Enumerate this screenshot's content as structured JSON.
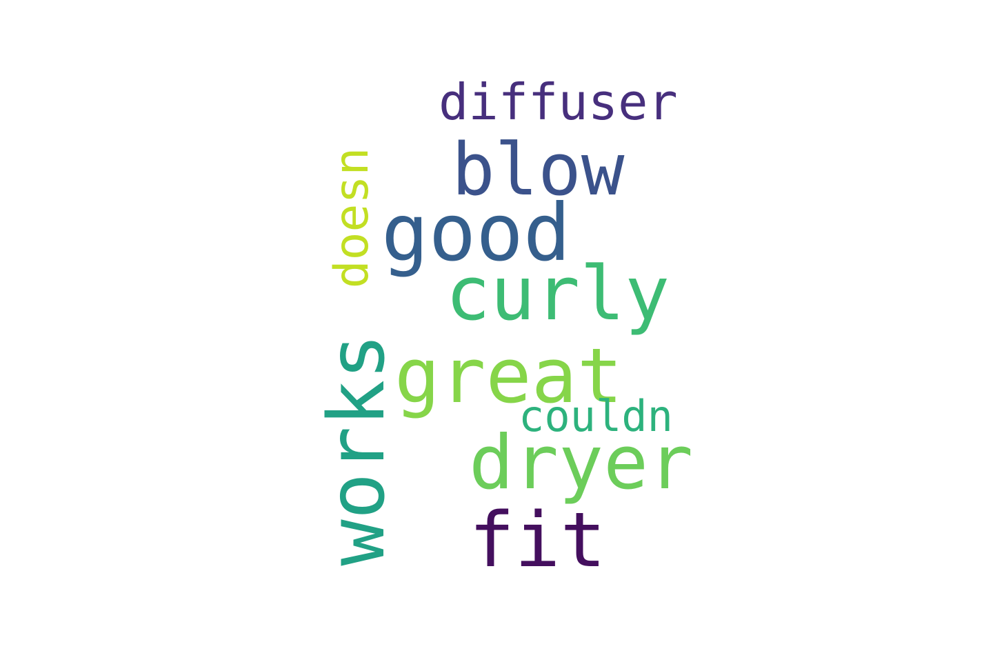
{
  "words": {
    "diffuser": {
      "text": "diffuser",
      "color": "#472f7d",
      "orientation": "horizontal"
    },
    "blow": {
      "text": "blow",
      "color": "#3b528b",
      "orientation": "horizontal"
    },
    "good": {
      "text": "good",
      "color": "#355f8d",
      "orientation": "horizontal"
    },
    "curly": {
      "text": "curly",
      "color": "#3dbc74",
      "orientation": "horizontal"
    },
    "great": {
      "text": "great",
      "color": "#86d549",
      "orientation": "horizontal"
    },
    "couldn": {
      "text": "couldn",
      "color": "#2db27d",
      "orientation": "horizontal"
    },
    "dryer": {
      "text": "dryer",
      "color": "#6ccd5a",
      "orientation": "horizontal"
    },
    "fit": {
      "text": "fit",
      "color": "#440f5e",
      "orientation": "horizontal"
    },
    "doesn": {
      "text": "doesn",
      "color": "#c2df23",
      "orientation": "vertical"
    },
    "works": {
      "text": "works",
      "color": "#21a185",
      "orientation": "vertical"
    }
  }
}
